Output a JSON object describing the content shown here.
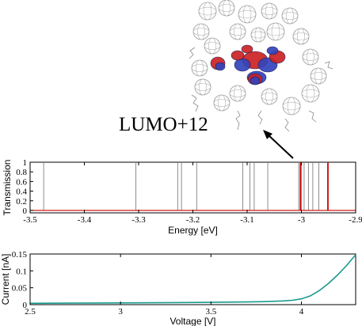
{
  "orbital_label": "LUMO+12",
  "chart_data": [
    {
      "type": "line",
      "title": "",
      "xlabel": "Energy [eV]",
      "ylabel": "Transmission",
      "xlim": [
        -3.5,
        -2.9
      ],
      "ylim": [
        -0.05,
        1.0
      ],
      "xticks": [
        -3.5,
        -3.4,
        -3.3,
        -3.2,
        -3.1,
        -3.0,
        -2.9
      ],
      "xtick_labels": [
        "-3.5",
        "-3.4",
        "-3.3",
        "-3.2",
        "-3.1",
        "-3",
        "-2.9"
      ],
      "yticks": [
        0,
        0.2,
        0.4,
        0.6,
        0.8,
        1.0
      ],
      "ytick_labels": [
        "0",
        "0.2",
        "0.4",
        "0.6",
        "0.8",
        "1"
      ],
      "series": [
        {
          "color": "#808080",
          "peaks": [
            -3.475,
            -3.305,
            -3.228,
            -3.221,
            -3.193,
            -3.108,
            -3.095,
            -3.087,
            -3.062,
            -3.005,
            -3.003,
            -2.995,
            -2.987,
            -2.979,
            -2.968,
            -2.952
          ]
        },
        {
          "color": "#cc0000",
          "peaks": [
            -3.001,
            -2.951
          ]
        }
      ]
    },
    {
      "type": "line",
      "title": "",
      "xlabel": "Voltage [V]",
      "ylabel": "Current [nA]",
      "xlim": [
        2.5,
        4.3
      ],
      "ylim": [
        0,
        0.15
      ],
      "xticks": [
        2.5,
        3,
        3.5,
        4
      ],
      "xtick_labels": [
        "2.5",
        "3",
        "3.5",
        "4"
      ],
      "yticks": [
        0,
        0.05,
        0.1,
        0.15
      ],
      "ytick_labels": [
        "0",
        "0.05",
        "0.1",
        "0.15"
      ],
      "series": [
        {
          "color": "#1a9a8e",
          "x": [
            2.5,
            2.7,
            2.9,
            3.1,
            3.3,
            3.5,
            3.7,
            3.8,
            3.9,
            3.95,
            4.0,
            4.05,
            4.1,
            4.15,
            4.2,
            4.25,
            4.3
          ],
          "y": [
            0.004,
            0.0045,
            0.005,
            0.0055,
            0.006,
            0.0068,
            0.008,
            0.009,
            0.011,
            0.013,
            0.017,
            0.026,
            0.042,
            0.063,
            0.088,
            0.116,
            0.148
          ]
        }
      ]
    }
  ]
}
